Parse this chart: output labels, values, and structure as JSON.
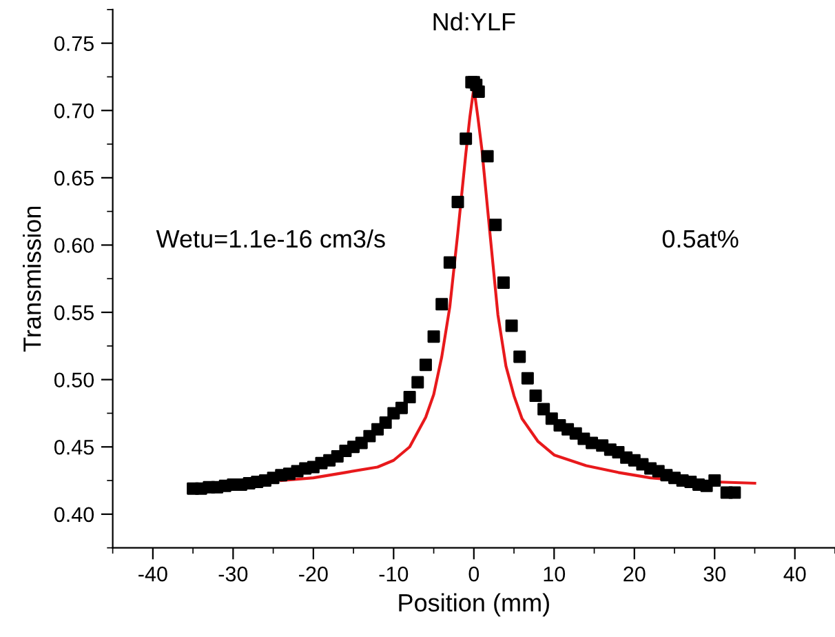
{
  "chart_data": {
    "type": "scatter",
    "title": "Nd:YLF",
    "xlabel": "Position (mm)",
    "ylabel": "Transmission",
    "annotations": [
      "Wetu=1.1e-16 cm3/s",
      "0.5at%"
    ],
    "xlim": [
      -45,
      45
    ],
    "ylim": [
      0.375,
      0.775
    ],
    "xticks": [
      -40,
      -30,
      -20,
      -10,
      0,
      10,
      20,
      30,
      40
    ],
    "yticks": [
      {
        "value": 0.4,
        "label": "0.40"
      },
      {
        "value": 0.45,
        "label": "0.45"
      },
      {
        "value": 0.5,
        "label": "0.50"
      },
      {
        "value": 0.55,
        "label": "0.55"
      },
      {
        "value": 0.6,
        "label": "0.60"
      },
      {
        "value": 0.65,
        "label": "0.65"
      },
      {
        "value": 0.7,
        "label": "0.70"
      },
      {
        "value": 0.75,
        "label": "0.75"
      }
    ],
    "grid": false,
    "series": [
      {
        "color": "#000000",
        "marker": "square",
        "x": [
          -35,
          -34,
          -33,
          -32,
          -31,
          -30,
          -29,
          -28,
          -27,
          -26,
          -25,
          -24,
          -23,
          -22,
          -21,
          -20,
          -19,
          -18,
          -17,
          -16,
          -15,
          -14,
          -13,
          -12,
          -11,
          -10,
          -9,
          -8,
          -7,
          -6,
          -5,
          -4,
          -3,
          -2,
          -1,
          -0.3,
          0,
          0.3,
          0.6,
          1.7,
          2.7,
          3.7,
          4.7,
          5.7,
          6.7,
          7.7,
          8.7,
          9.7,
          10.7,
          11.7,
          12.7,
          13.7,
          14.7,
          16,
          17,
          18,
          19,
          20,
          21,
          22,
          23,
          24,
          25,
          26,
          27,
          28,
          29,
          30,
          31.5,
          32.5
        ],
        "values": [
          0.419,
          0.419,
          0.42,
          0.42,
          0.421,
          0.422,
          0.422,
          0.423,
          0.424,
          0.425,
          0.427,
          0.429,
          0.43,
          0.432,
          0.434,
          0.435,
          0.438,
          0.44,
          0.443,
          0.447,
          0.45,
          0.453,
          0.458,
          0.463,
          0.468,
          0.475,
          0.479,
          0.487,
          0.498,
          0.511,
          0.532,
          0.556,
          0.587,
          0.632,
          0.679,
          0.721,
          0.721,
          0.719,
          0.714,
          0.666,
          0.615,
          0.572,
          0.54,
          0.517,
          0.501,
          0.488,
          0.478,
          0.471,
          0.466,
          0.463,
          0.46,
          0.456,
          0.453,
          0.451,
          0.448,
          0.446,
          0.442,
          0.44,
          0.437,
          0.434,
          0.432,
          0.429,
          0.427,
          0.425,
          0.424,
          0.422,
          0.421,
          0.425,
          0.416,
          0.416
        ]
      },
      {
        "type": "line",
        "color": "#e8191c",
        "marker": "none",
        "line_style": "solid",
        "x": [
          -24,
          -20,
          -16,
          -12,
          -10,
          -8,
          -6,
          -5,
          -4,
          -3,
          -2,
          -1,
          -0.5,
          0,
          0.5,
          1,
          2,
          3,
          4,
          5,
          6,
          8,
          10,
          14,
          18,
          22,
          26,
          30,
          35
        ],
        "values": [
          0.425,
          0.427,
          0.431,
          0.435,
          0.44,
          0.45,
          0.472,
          0.489,
          0.517,
          0.554,
          0.609,
          0.668,
          0.695,
          0.717,
          0.695,
          0.671,
          0.609,
          0.548,
          0.51,
          0.488,
          0.471,
          0.454,
          0.444,
          0.436,
          0.431,
          0.427,
          0.425,
          0.424,
          0.423
        ]
      }
    ]
  }
}
